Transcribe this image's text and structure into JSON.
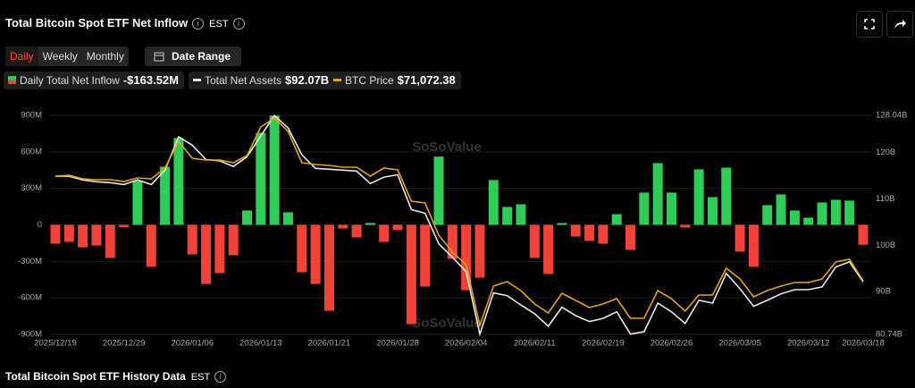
{
  "chart_data": {
    "type": "bar",
    "title": "Total Bitcoin Spot ETF Net Inflow",
    "timezone": "EST",
    "buttons": [
      "Daily",
      "Weekly",
      "Monthly"
    ],
    "date_range": "Date Range",
    "watermark": "SoSoValue",
    "footer_title": "Total Bitcoin Spot ETF History Data",
    "categories": [
      "2025/12/19",
      null,
      null,
      null,
      null,
      "2025/12/29",
      null,
      null,
      null,
      null,
      "2026/01/06",
      null,
      null,
      null,
      null,
      "2026/01/13",
      null,
      null,
      null,
      null,
      "2026/01/21",
      null,
      null,
      null,
      null,
      "2026/01/28",
      null,
      null,
      null,
      null,
      "2026/02/04",
      null,
      null,
      null,
      null,
      "2026/02/11",
      null,
      null,
      null,
      null,
      "2026/02/19",
      null,
      null,
      null,
      null,
      "2026/02/26",
      null,
      null,
      null,
      null,
      "2026/03/05",
      null,
      null,
      null,
      null,
      "2026/03/12",
      null,
      null,
      null,
      "2026/03/18"
    ],
    "series": [
      {
        "name": "Daily Total Net Inflow",
        "type": "bar",
        "color_up": "#2fcc58",
        "color_down": "#f2433a",
        "legend_value": "-$163.52M",
        "values": [
          -155,
          -140,
          -185,
          -170,
          -272,
          -20,
          360,
          -345,
          478,
          713,
          -243,
          -486,
          -397,
          -250,
          118,
          757,
          897,
          103,
          -390,
          -486,
          -706,
          -30,
          -103,
          15,
          -140,
          -44,
          -816,
          -507,
          561,
          -279,
          -537,
          -434,
          368,
          147,
          169,
          -272,
          -404,
          15,
          -96,
          -132,
          -155,
          88,
          -206,
          265,
          507,
          265,
          -22,
          456,
          228,
          470,
          -220,
          -345,
          162,
          250,
          118,
          59,
          184,
          206,
          199,
          -163.52
        ]
      },
      {
        "name": "Total Net Assets",
        "type": "line",
        "axis": "y2",
        "color": "#e8e8e8",
        "legend_value": "$92.07B",
        "values": [
          114.9,
          114.9,
          114.1,
          113.7,
          113.5,
          113.1,
          114.1,
          113.1,
          116.2,
          123.4,
          121.6,
          118.5,
          118.2,
          117.0,
          119.1,
          123.6,
          128.0,
          125.3,
          119.5,
          116.6,
          116.4,
          116.2,
          116.0,
          113.3,
          114.7,
          115.2,
          107.7,
          106.9,
          100.3,
          97.4,
          94.3,
          80.8,
          89.7,
          89.1,
          87.1,
          85.2,
          82.5,
          86.6,
          84.8,
          83.5,
          84.2,
          85.6,
          80.8,
          81.3,
          87.5,
          85.6,
          83.1,
          88.1,
          87.5,
          93.9,
          90.6,
          86.8,
          88.1,
          89.5,
          90.4,
          90.4,
          91.0,
          95.3,
          96.4,
          92.07
        ]
      },
      {
        "name": "BTC Price",
        "type": "line",
        "axis": "y3",
        "color": "#e3a21a",
        "legend_value": "$71,072.38",
        "values": [
          87830,
          87970,
          87400,
          87250,
          87250,
          86970,
          87540,
          87400,
          89120,
          93410,
          90690,
          90400,
          90400,
          89970,
          91120,
          95700,
          97130,
          94990,
          89970,
          89690,
          89550,
          89260,
          89260,
          87830,
          89120,
          88830,
          83820,
          83530,
          78380,
          75650,
          73650,
          63910,
          70210,
          70930,
          69500,
          67350,
          65920,
          69070,
          67920,
          66780,
          67350,
          68210,
          65060,
          65060,
          69500,
          68210,
          66200,
          68780,
          68780,
          73080,
          71360,
          68490,
          69500,
          70210,
          70790,
          70790,
          71360,
          74080,
          74510,
          71072.38
        ]
      }
    ],
    "ylim": [
      -900,
      900
    ],
    "yticks": [
      {
        "value": 900,
        "label": "900M"
      },
      {
        "value": 600,
        "label": "600M"
      },
      {
        "value": 300,
        "label": "300M"
      },
      0,
      {
        "value": -300,
        "label": "-300M"
      },
      {
        "value": -600,
        "label": "-600M"
      },
      {
        "value": -900,
        "label": "-900M"
      }
    ],
    "y2lim": [
      80.74,
      128.04
    ],
    "y2ticks": [
      {
        "value": 128.04,
        "label": "128.04B"
      },
      {
        "value": 120,
        "label": "120B"
      },
      {
        "value": 110,
        "label": "110B"
      },
      {
        "value": 100,
        "label": "100B"
      },
      {
        "value": 90,
        "label": "90B"
      },
      {
        "value": 80.74,
        "label": "80.74B"
      }
    ],
    "y3lim": [
      62480,
      97564
    ],
    "grid": true
  }
}
